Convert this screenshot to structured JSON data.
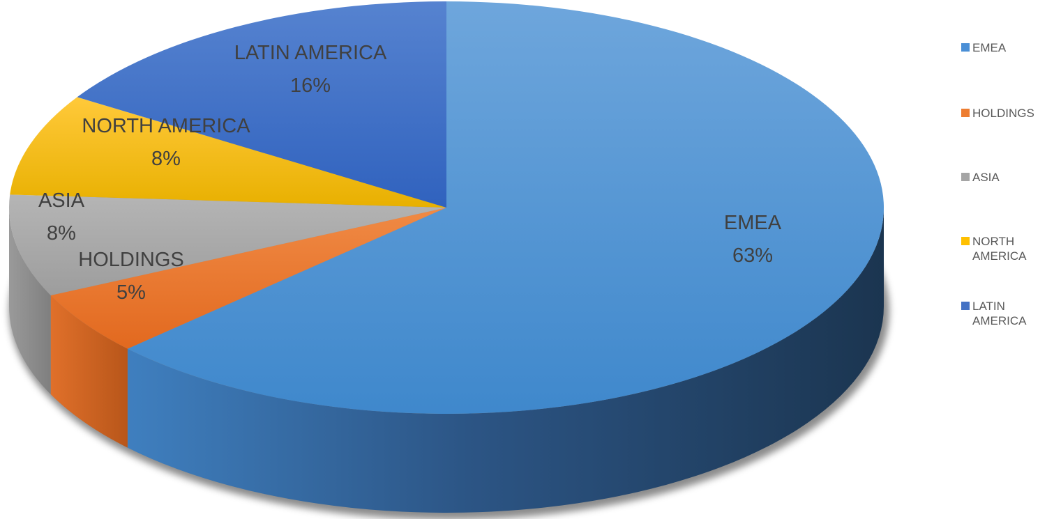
{
  "chart_data": {
    "type": "pie",
    "title": "",
    "categories": [
      "EMEA",
      "HOLDINGS",
      "ASIA",
      "NORTH AMERICA",
      "LATIN AMERICA"
    ],
    "values": [
      63,
      5,
      8,
      8,
      16
    ],
    "value_labels": [
      "63%",
      "5%",
      "8%",
      "8%",
      "16%"
    ],
    "colors": [
      "#4a8fd6",
      "#ed7d31",
      "#a5a5a5",
      "#ffc000",
      "#4472c4"
    ],
    "legend_position": "right",
    "style": "3d"
  },
  "legend": {
    "items": [
      {
        "label": "EMEA",
        "color": "#4a8fd6"
      },
      {
        "label": "HOLDINGS",
        "color": "#ed7d31"
      },
      {
        "label": "ASIA",
        "color": "#a5a5a5"
      },
      {
        "label": "NORTH AMERICA",
        "color": "#ffc000"
      },
      {
        "label": "LATIN AMERICA",
        "color": "#4472c4"
      }
    ]
  }
}
